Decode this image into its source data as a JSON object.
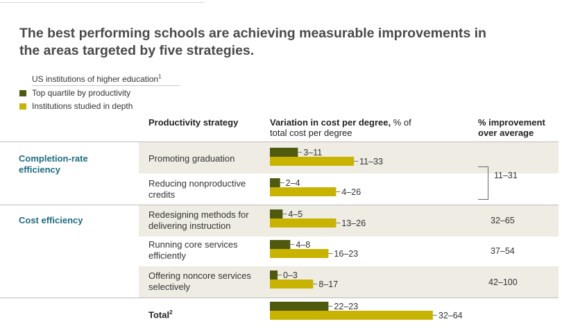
{
  "title": "The best performing schools are achieving measurable improvements in the areas targeted by five strategies.",
  "legend": {
    "heading": "US institutions of higher education",
    "heading_note": "1",
    "items": [
      {
        "label": "Top quartile by productivity",
        "color": "#4f5a0f"
      },
      {
        "label": "Institutions studied in depth",
        "color": "#c8b400"
      }
    ]
  },
  "columns": {
    "strategy": "Productivity strategy",
    "variation_bold": "Variation in cost per degree,",
    "variation_rest": " % of",
    "variation_line2": "total cost per degree",
    "improvement_line1": "% improvement",
    "improvement_line2": "over average"
  },
  "groups": [
    {
      "label_line1": "Completion-rate",
      "label_line2": "efficiency"
    },
    {
      "label_line1": "Cost efficiency"
    }
  ],
  "strategies": [
    {
      "line1": "Promoting graduation",
      "line2": ""
    },
    {
      "line1": "Reducing nonproductive",
      "line2": "credits"
    },
    {
      "line1": "Redesigning methods for",
      "line2": "delivering instruction"
    },
    {
      "line1": "Running core services",
      "line2": "efficiently"
    },
    {
      "line1": "Offering noncore services",
      "line2": "selectively"
    },
    {
      "line1": "Total",
      "note": "2"
    }
  ],
  "improvements": [
    "11–31",
    "32–65",
    "37–54",
    "42–100"
  ],
  "chart_data": {
    "type": "bar",
    "orientation": "horizontal",
    "categories": [
      "Promoting graduation",
      "Reducing nonproductive credits",
      "Redesigning methods for delivering instruction",
      "Running core services efficiently",
      "Offering noncore services selectively",
      "Total"
    ],
    "series": [
      {
        "name": "Top quartile by productivity",
        "color": "#4f5a0f",
        "values": [
          11,
          4,
          5,
          8,
          3,
          23
        ],
        "labels": [
          "3–11",
          "2–4",
          "4–5",
          "4–8",
          "0–3",
          "22–23"
        ]
      },
      {
        "name": "Institutions studied in depth",
        "color": "#c8b400",
        "values": [
          33,
          26,
          26,
          23,
          17,
          64
        ],
        "labels": [
          "11–33",
          "4–26",
          "13–26",
          "16–23",
          "8–17",
          "32–64"
        ]
      }
    ],
    "xlim": [
      0,
      64
    ]
  }
}
